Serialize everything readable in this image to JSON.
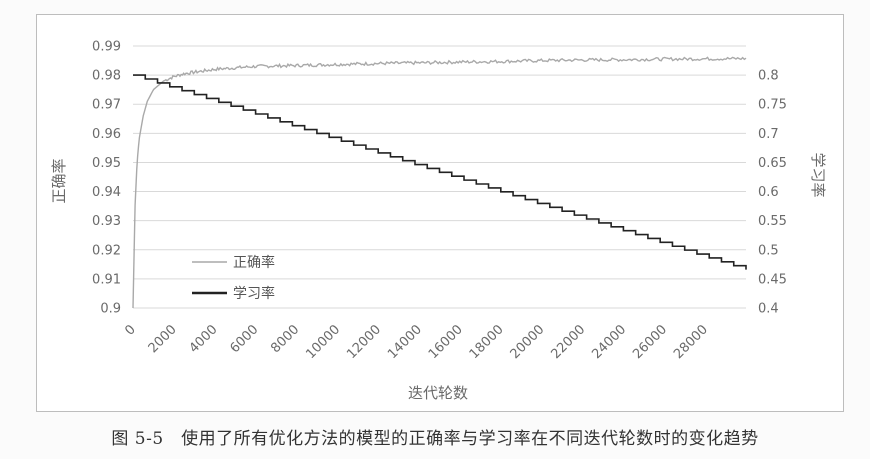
{
  "caption": "图 5-5　使用了所有优化方法的模型的正确率与学习率在不同迭代轮数时的变化趋势",
  "chart_data": {
    "type": "line",
    "xlabel": "迭代轮数",
    "ylabel_left": "正确率",
    "ylabel_right": "学习率",
    "x_ticks": [
      0,
      2000,
      4000,
      6000,
      8000,
      10000,
      12000,
      14000,
      16000,
      18000,
      20000,
      22000,
      24000,
      26000,
      28000
    ],
    "xlim": [
      0,
      30000
    ],
    "ylim_left": [
      0.9,
      0.99
    ],
    "y_ticks_left": [
      0.9,
      0.91,
      0.92,
      0.93,
      0.94,
      0.95,
      0.96,
      0.97,
      0.98,
      0.99
    ],
    "ylim_right": [
      0.4,
      0.85
    ],
    "y_ticks_right": [
      0.4,
      0.45,
      0.5,
      0.55,
      0.6,
      0.65,
      0.7,
      0.75,
      0.8
    ],
    "grid": "horizontal",
    "legend_position": "lower-left",
    "series": [
      {
        "name": "正确率",
        "axis": "left",
        "color": "#a9a9a9",
        "x": [
          0,
          100,
          200,
          300,
          500,
          700,
          1000,
          1500,
          2000,
          2500,
          3000,
          4000,
          5000,
          6000,
          8000,
          10000,
          12000,
          14000,
          16000,
          18000,
          20000,
          22000,
          24000,
          26000,
          28000,
          30000
        ],
        "y": [
          0.9,
          0.935,
          0.95,
          0.958,
          0.966,
          0.971,
          0.975,
          0.978,
          0.9795,
          0.9805,
          0.981,
          0.982,
          0.9825,
          0.983,
          0.9833,
          0.9837,
          0.984,
          0.9842,
          0.9845,
          0.9847,
          0.985,
          0.9852,
          0.9853,
          0.9855,
          0.9856,
          0.9857
        ]
      },
      {
        "name": "学习率",
        "axis": "right",
        "color": "#222222",
        "x": [
          0,
          30000
        ],
        "y": [
          0.8,
          0.466
        ],
        "step": 600
      }
    ]
  }
}
